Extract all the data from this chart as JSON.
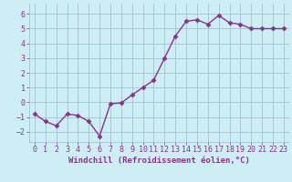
{
  "x": [
    0,
    1,
    2,
    3,
    4,
    5,
    6,
    7,
    8,
    9,
    10,
    11,
    12,
    13,
    14,
    15,
    16,
    17,
    18,
    19,
    20,
    21,
    22,
    23
  ],
  "y": [
    -0.8,
    -1.3,
    -1.6,
    -0.8,
    -0.9,
    -1.3,
    -2.3,
    -0.1,
    -0.05,
    0.5,
    1.0,
    1.5,
    3.0,
    4.5,
    5.5,
    5.6,
    5.3,
    5.9,
    5.4,
    5.3,
    5.0,
    5.0,
    5.0,
    5.0
  ],
  "line_color": "#883388",
  "marker": "D",
  "marker_size": 2.5,
  "background_color": "#cceef4",
  "grid_color": "#99bbcc",
  "xlabel": "Windchill (Refroidissement éolien,°C)",
  "xlim": [
    -0.5,
    23.5
  ],
  "ylim": [
    -2.7,
    6.7
  ],
  "yticks": [
    -2,
    -1,
    0,
    1,
    2,
    3,
    4,
    5,
    6
  ],
  "xtick_labels": [
    "0",
    "1",
    "2",
    "3",
    "4",
    "5",
    "6",
    "7",
    "8",
    "9",
    "10",
    "11",
    "12",
    "13",
    "14",
    "15",
    "16",
    "17",
    "18",
    "19",
    "20",
    "21",
    "22",
    "23"
  ],
  "tick_color": "#883388",
  "label_color": "#883388",
  "xlabel_fontsize": 6.5,
  "tick_fontsize": 6.0,
  "linewidth": 1.0
}
